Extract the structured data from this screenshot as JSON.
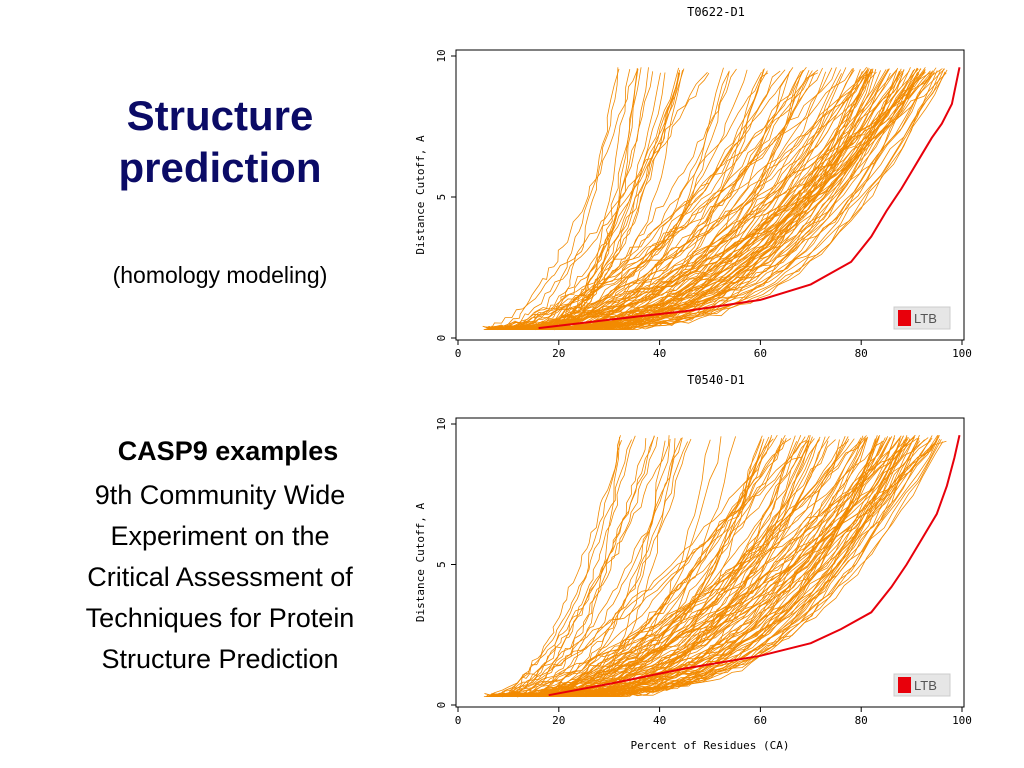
{
  "slide": {
    "title_line1": "Structure",
    "title_line2": "prediction",
    "subtitle": "(homology modeling)",
    "casp_heading": "CASP9 examples",
    "description_lines": [
      "9th Community Wide",
      "Experiment on the",
      "Critical Assessment of",
      "Techniques for Protein",
      "Structure Prediction"
    ]
  },
  "colors": {
    "title": "#0b0b66",
    "model_lines": "#f28a00",
    "highlight_line": "#e8000b",
    "legend_box": "#e6e6e6"
  },
  "chart_data": [
    {
      "type": "line",
      "title": "T0622-D1",
      "xlabel": "",
      "ylabel": "Distance Cutoff, A",
      "xlim": [
        0,
        100
      ],
      "ylim": [
        0,
        10
      ],
      "xticks": [
        0,
        20,
        40,
        60,
        80,
        100
      ],
      "yticks": [
        0,
        5,
        10
      ],
      "legend": "LTB",
      "legend_position": "bottom-right",
      "series_count_approx": 120,
      "highlight_series": {
        "name": "LTB",
        "x": [
          16,
          30,
          45,
          60,
          70,
          78,
          82,
          85,
          88,
          90,
          92,
          94,
          96,
          98,
          99.5
        ],
        "y": [
          0.35,
          0.65,
          0.95,
          1.35,
          1.9,
          2.7,
          3.6,
          4.5,
          5.3,
          5.9,
          6.5,
          7.1,
          7.6,
          8.3,
          9.6
        ]
      }
    },
    {
      "type": "line",
      "title": "T0540-D1",
      "xlabel": "Percent of Residues (CA)",
      "ylabel": "Distance Cutoff, A",
      "xlim": [
        0,
        100
      ],
      "ylim": [
        0,
        10
      ],
      "xticks": [
        0,
        20,
        40,
        60,
        80,
        100
      ],
      "yticks": [
        0,
        5,
        10
      ],
      "legend": "LTB",
      "legend_position": "bottom-right",
      "series_count_approx": 120,
      "highlight_series": {
        "name": "LTB",
        "x": [
          18,
          30,
          45,
          60,
          70,
          76,
          82,
          86,
          89,
          92,
          95,
          97,
          98.5,
          99.5
        ],
        "y": [
          0.35,
          0.75,
          1.3,
          1.75,
          2.2,
          2.7,
          3.3,
          4.2,
          5.0,
          5.9,
          6.8,
          7.8,
          8.8,
          9.6
        ]
      }
    }
  ]
}
